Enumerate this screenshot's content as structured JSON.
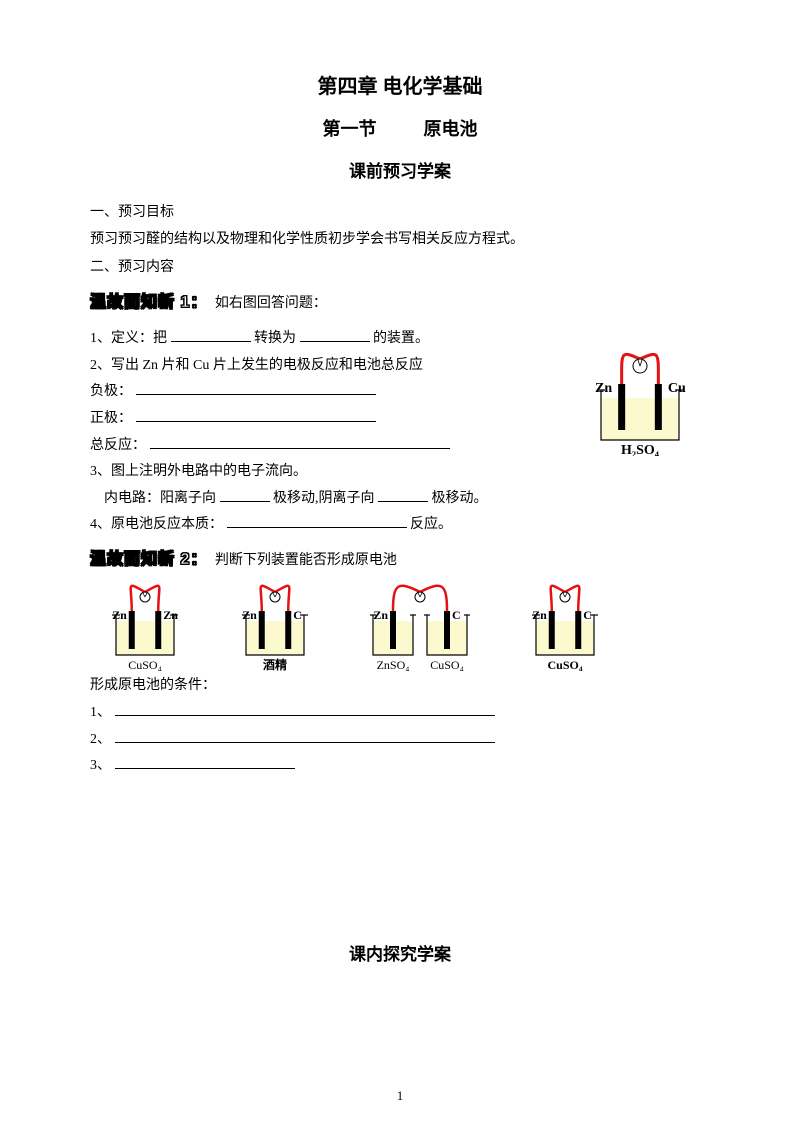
{
  "titles": {
    "chapter": "第四章 电化学基础",
    "section_left": "第一节",
    "section_right": "原电池",
    "subtitle": "课前预习学案",
    "bottom": "课内探究学案"
  },
  "preview_goal_hdr": "一、预习目标",
  "preview_goal_text": "预习预习醛的结构以及物理和化学性质初步学会书写相关反应方程式。",
  "preview_content_hdr": "二、预习内容",
  "review1_hdr": "温故而知新 1：",
  "review1_prompt": "如右图回答问题：",
  "q1_pre": "1、定义：把",
  "q1_mid": "转换为",
  "q1_post": "的装置。",
  "q2": "2、写出 Zn 片和 Cu 片上发生的电极反应和电池总反应",
  "neg": "负极：",
  "pos": "正极：",
  "total": "总反应：",
  "q3": "3、图上注明外电路中的电子流向。",
  "q3b_pre": "内电路：阳离子向",
  "q3b_mid": "极移动,阴离子向",
  "q3b_post": "极移动。",
  "q4_pre": "4、原电池反应本质：",
  "q4_post": "反应。",
  "review2_hdr": "温故而知新 2：",
  "review2_prompt": "判断下列装置能否形成原电池",
  "conditions_hdr": "形成原电池的条件：",
  "c1": "1、",
  "c2": "2、",
  "c3": "3、",
  "page_num": "1",
  "cell_right": {
    "left": "Zn",
    "right": "Cu",
    "sol": "H₂SO₄",
    "colors": {
      "wire": "#e71113",
      "meter_fill": "#ffffff",
      "beaker_stroke": "#000000",
      "liquid": "#fdf9cf",
      "electrode": "#000000"
    }
  },
  "cells": [
    {
      "left": "Zn",
      "right": "Zn",
      "sol": [
        "CuSO₄"
      ],
      "double": false
    },
    {
      "left": "Zn",
      "right": "C",
      "sol": [
        "酒精"
      ],
      "double": false,
      "sol_bold": true
    },
    {
      "left": "Zn",
      "right": "C",
      "sol": [
        "ZnSO₄",
        "CuSO₄"
      ],
      "double": true
    },
    {
      "left": "Zn",
      "right": "C",
      "sol": [
        "CuSO₄"
      ],
      "double": false,
      "sol_bold": true
    }
  ],
  "svg": {
    "single_w": 110,
    "single_h": 90,
    "double_w": 140,
    "double_h": 90
  }
}
